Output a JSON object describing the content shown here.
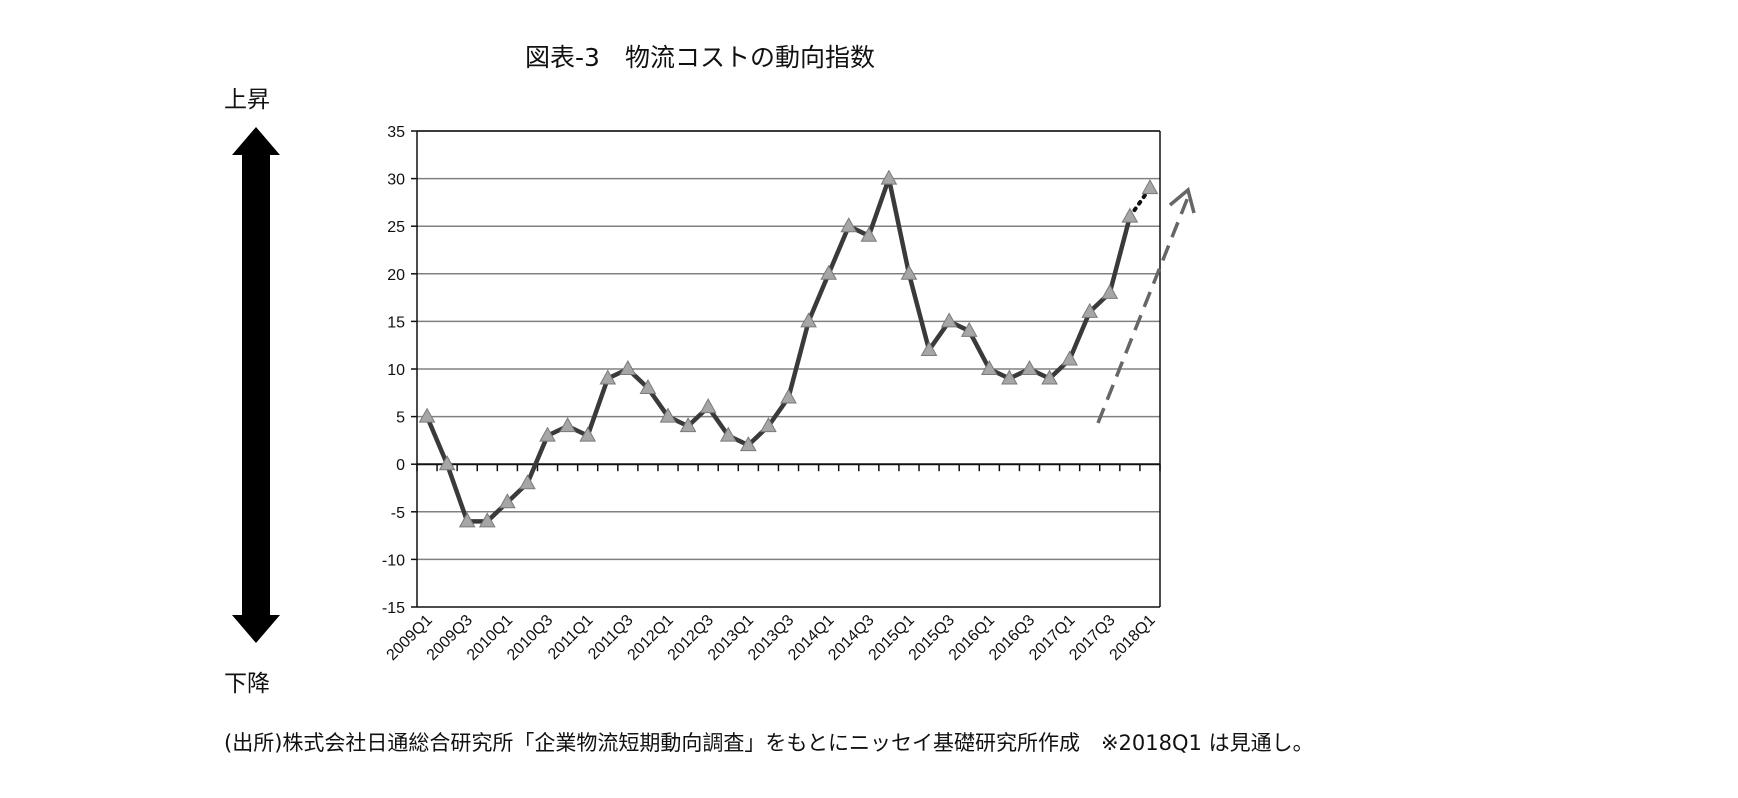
{
  "title": "図表-3　物流コストの動向指数",
  "side_labels": {
    "up": "上昇",
    "down": "下降"
  },
  "source_note": "(出所)株式会社日通総合研究所「企業物流短期動向調査」をもとにニッセイ基礎研究所作成　※2018Q1 は見通し。",
  "colors": {
    "line": "#3a3a3a",
    "marker": "#a6a6a6",
    "grid": "#808080",
    "trend_arrow": "#666666",
    "updown_arrow": "#000000"
  },
  "chart_data": {
    "type": "line",
    "title": "図表-3　物流コストの動向指数",
    "xlabel": "",
    "ylabel": "",
    "ylim": [
      -15,
      35
    ],
    "yticks": [
      35,
      30,
      25,
      20,
      15,
      10,
      5,
      0,
      -5,
      -10,
      -15
    ],
    "grid": true,
    "legend": "none",
    "x": [
      "2009Q1",
      "2009Q2",
      "2009Q3",
      "2009Q4",
      "2010Q1",
      "2010Q2",
      "2010Q3",
      "2010Q4",
      "2011Q1",
      "2011Q2",
      "2011Q3",
      "2011Q4",
      "2012Q1",
      "2012Q2",
      "2012Q3",
      "2012Q4",
      "2013Q1",
      "2013Q2",
      "2013Q3",
      "2013Q4",
      "2014Q1",
      "2014Q2",
      "2014Q3",
      "2014Q4",
      "2015Q1",
      "2015Q2",
      "2015Q3",
      "2015Q4",
      "2016Q1",
      "2016Q2",
      "2016Q3",
      "2016Q4",
      "2017Q1",
      "2017Q2",
      "2017Q3",
      "2017Q4",
      "2018Q1"
    ],
    "xtick_labels": [
      "2009Q1",
      "2009Q3",
      "2010Q1",
      "2010Q3",
      "2011Q1",
      "2011Q3",
      "2012Q1",
      "2012Q3",
      "2013Q1",
      "2013Q3",
      "2014Q1",
      "2014Q3",
      "2015Q1",
      "2015Q3",
      "2016Q1",
      "2016Q3",
      "2017Q1",
      "2017Q3",
      "2018Q1"
    ],
    "series": [
      {
        "values": [
          5,
          0,
          -6,
          -6,
          -4,
          -2,
          3,
          4,
          3,
          9,
          10,
          8,
          5,
          4,
          6,
          3,
          2,
          4,
          7,
          15,
          20,
          25,
          24,
          30,
          20,
          12,
          15,
          14,
          10,
          9,
          10,
          9,
          11,
          16,
          18,
          26,
          29
        ],
        "forecast_from": "2017Q4"
      }
    ]
  }
}
